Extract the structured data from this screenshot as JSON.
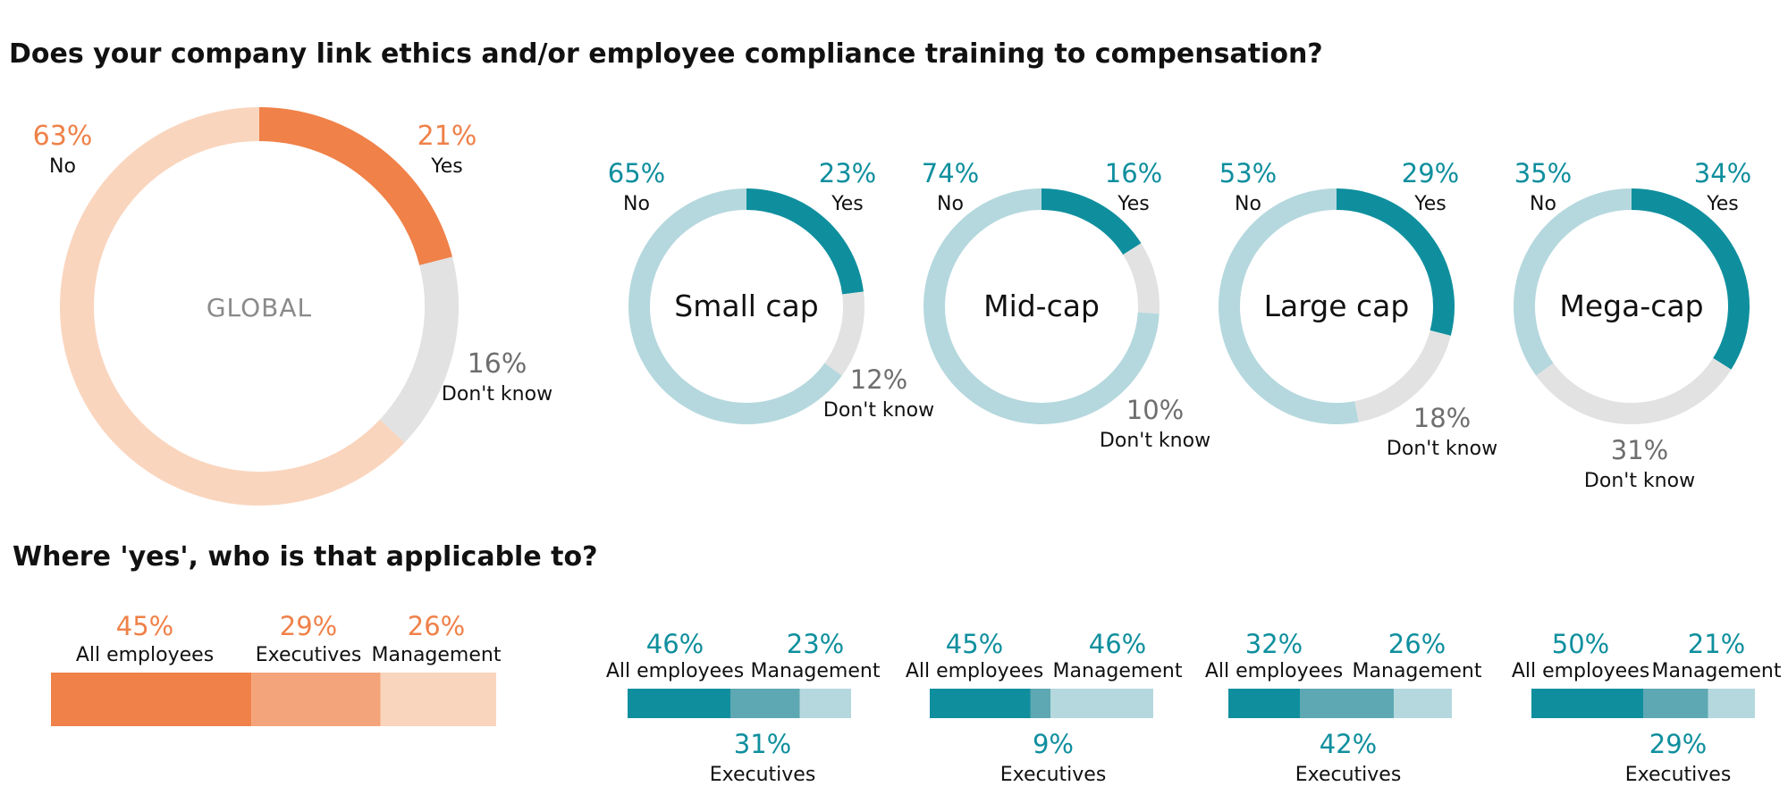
{
  "titles": {
    "main": "Does your company link ethics and/or employee compliance training to compensation?",
    "sub": "Where 'yes', who is that applicable to?"
  },
  "colors": {
    "orange_dark": "#ef8149",
    "orange_mid": "#f4a47a",
    "orange_light": "#fad5be",
    "teal_dark": "#0f8f9e",
    "teal_mid": "#5ea8b3",
    "teal_light": "#b5d8de",
    "grey": "#e2e2e2",
    "grey_text": "#6e6e6e"
  },
  "chart_data": [
    {
      "type": "pie",
      "id": "global",
      "center_label": "GLOBAL",
      "categories": [
        "Yes",
        "Don't know",
        "No"
      ],
      "values": [
        21,
        16,
        63
      ],
      "value_labels": [
        "21%",
        "16%",
        "63%"
      ]
    },
    {
      "type": "pie",
      "id": "small",
      "center_label": "Small cap",
      "categories": [
        "Yes",
        "Don't know",
        "No"
      ],
      "values": [
        23,
        12,
        65
      ],
      "value_labels": [
        "23%",
        "12%",
        "65%"
      ]
    },
    {
      "type": "pie",
      "id": "mid",
      "center_label": "Mid-cap",
      "categories": [
        "Yes",
        "Don't know",
        "No"
      ],
      "values": [
        16,
        10,
        74
      ],
      "value_labels": [
        "16%",
        "10%",
        "74%"
      ]
    },
    {
      "type": "pie",
      "id": "large",
      "center_label": "Large cap",
      "categories": [
        "Yes",
        "Don't know",
        "No"
      ],
      "values": [
        29,
        18,
        53
      ],
      "value_labels": [
        "29%",
        "18%",
        "53%"
      ]
    },
    {
      "type": "pie",
      "id": "mega",
      "center_label": "Mega-cap",
      "categories": [
        "Yes",
        "Don't know",
        "No"
      ],
      "values": [
        34,
        31,
        35
      ],
      "value_labels": [
        "34%",
        "31%",
        "35%"
      ]
    },
    {
      "type": "bar",
      "id": "global-bar",
      "orientation": "stacked-horizontal",
      "categories": [
        "All employees",
        "Executives",
        "Management"
      ],
      "values": [
        45,
        29,
        26
      ],
      "value_labels": [
        "45%",
        "29%",
        "26%"
      ]
    },
    {
      "type": "bar",
      "id": "small-bar",
      "orientation": "stacked-horizontal",
      "categories": [
        "All employees",
        "Executives",
        "Management"
      ],
      "values": [
        46,
        31,
        23
      ],
      "value_labels": [
        "46%",
        "31%",
        "23%"
      ]
    },
    {
      "type": "bar",
      "id": "mid-bar",
      "orientation": "stacked-horizontal",
      "categories": [
        "All employees",
        "Executives",
        "Management"
      ],
      "values": [
        45,
        9,
        46
      ],
      "value_labels": [
        "45%",
        "9%",
        "46%"
      ]
    },
    {
      "type": "bar",
      "id": "large-bar",
      "orientation": "stacked-horizontal",
      "categories": [
        "All employees",
        "Executives",
        "Management"
      ],
      "values": [
        32,
        42,
        26
      ],
      "value_labels": [
        "32%",
        "42%",
        "26%"
      ]
    },
    {
      "type": "bar",
      "id": "mega-bar",
      "orientation": "stacked-horizontal",
      "categories": [
        "All employees",
        "Executives",
        "Management"
      ],
      "values": [
        50,
        29,
        21
      ],
      "value_labels": [
        "50%",
        "29%",
        "21%"
      ]
    }
  ]
}
